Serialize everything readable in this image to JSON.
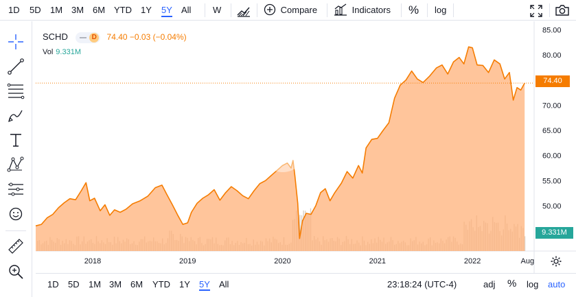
{
  "top_toolbar": {
    "ranges": [
      {
        "label": "1D",
        "active": false
      },
      {
        "label": "5D",
        "active": false
      },
      {
        "label": "1M",
        "active": false
      },
      {
        "label": "3M",
        "active": false
      },
      {
        "label": "6M",
        "active": false
      },
      {
        "label": "YTD",
        "active": false
      },
      {
        "label": "1Y",
        "active": false
      },
      {
        "label": "5Y",
        "active": true
      },
      {
        "label": "All",
        "active": false
      }
    ],
    "interval_label": "W",
    "compare_label": "Compare",
    "indicators_label": "Indicators",
    "percent_label": "%",
    "log_label": "log"
  },
  "legend": {
    "symbol": "SCHD",
    "badge": "D",
    "ohlc": "74.40 −0.03 (−0.04%)",
    "vol_label": "Vol",
    "vol_value": "9.331M"
  },
  "price_tag": "74.40",
  "vol_tag": "9.331M",
  "bottom_bar": {
    "ranges": [
      {
        "label": "1D",
        "active": false
      },
      {
        "label": "5D",
        "active": false
      },
      {
        "label": "1M",
        "active": false
      },
      {
        "label": "3M",
        "active": false
      },
      {
        "label": "6M",
        "active": false
      },
      {
        "label": "YTD",
        "active": false
      },
      {
        "label": "1Y",
        "active": false
      },
      {
        "label": "5Y",
        "active": true
      },
      {
        "label": "All",
        "active": false
      }
    ],
    "clock": "23:18:24 (UTC-4)",
    "adj_label": "adj",
    "percent_label": "%",
    "log_label": "log",
    "auto_label": "auto"
  },
  "colors": {
    "line": "#f57c00",
    "area": "#ffb27a",
    "volume": "#d9d0c6",
    "accent": "#2962ff"
  },
  "chart_data": {
    "type": "area",
    "symbol": "SCHD",
    "y_ticks": [
      "85.00",
      "80.00",
      "75.00",
      "70.00",
      "65.00",
      "60.00",
      "55.00",
      "50.00",
      "45.00"
    ],
    "ylim": [
      41,
      86
    ],
    "x_ticks": [
      {
        "label": "2018",
        "x": 2018.0
      },
      {
        "label": "2019",
        "x": 2019.0
      },
      {
        "label": "2020",
        "x": 2020.0
      },
      {
        "label": "2021",
        "x": 2021.0
      },
      {
        "label": "2022",
        "x": 2022.0
      },
      {
        "label": "Aug",
        "x": 2022.58
      }
    ],
    "xlim": [
      2017.4,
      2022.65
    ],
    "last_price": 74.4,
    "series": [
      {
        "name": "SCHD",
        "points": [
          [
            2017.4,
            46.0
          ],
          [
            2017.46,
            46.3
          ],
          [
            2017.52,
            47.6
          ],
          [
            2017.58,
            48.3
          ],
          [
            2017.64,
            49.6
          ],
          [
            2017.7,
            50.6
          ],
          [
            2017.76,
            51.4
          ],
          [
            2017.82,
            51.2
          ],
          [
            2017.88,
            53.0
          ],
          [
            2017.93,
            54.6
          ],
          [
            2017.97,
            51.0
          ],
          [
            2018.02,
            51.5
          ],
          [
            2018.08,
            49.0
          ],
          [
            2018.13,
            50.2
          ],
          [
            2018.18,
            48.1
          ],
          [
            2018.23,
            49.2
          ],
          [
            2018.29,
            48.7
          ],
          [
            2018.35,
            49.3
          ],
          [
            2018.42,
            50.4
          ],
          [
            2018.5,
            51.0
          ],
          [
            2018.58,
            51.9
          ],
          [
            2018.66,
            53.6
          ],
          [
            2018.73,
            54.1
          ],
          [
            2018.78,
            52.3
          ],
          [
            2018.84,
            50.2
          ],
          [
            2018.9,
            48.0
          ],
          [
            2018.95,
            46.3
          ],
          [
            2019.0,
            46.6
          ],
          [
            2019.04,
            48.7
          ],
          [
            2019.1,
            50.5
          ],
          [
            2019.16,
            51.5
          ],
          [
            2019.22,
            52.2
          ],
          [
            2019.28,
            53.2
          ],
          [
            2019.34,
            51.1
          ],
          [
            2019.4,
            52.6
          ],
          [
            2019.46,
            53.8
          ],
          [
            2019.52,
            53.0
          ],
          [
            2019.58,
            52.0
          ],
          [
            2019.64,
            51.4
          ],
          [
            2019.7,
            53.0
          ],
          [
            2019.76,
            54.4
          ],
          [
            2019.82,
            55.0
          ],
          [
            2019.88,
            56.0
          ],
          [
            2019.94,
            57.0
          ],
          [
            2020.0,
            58.0
          ],
          [
            2020.05,
            58.5
          ],
          [
            2020.09,
            57.5
          ],
          [
            2020.11,
            59.0
          ],
          [
            2020.13,
            56.0
          ],
          [
            2020.16,
            50.5
          ],
          [
            2020.18,
            43.5
          ],
          [
            2020.21,
            47.0
          ],
          [
            2020.25,
            48.5
          ],
          [
            2020.3,
            48.3
          ],
          [
            2020.35,
            50.0
          ],
          [
            2020.4,
            52.6
          ],
          [
            2020.45,
            53.4
          ],
          [
            2020.5,
            51.0
          ],
          [
            2020.55,
            52.6
          ],
          [
            2020.62,
            54.5
          ],
          [
            2020.68,
            56.8
          ],
          [
            2020.74,
            55.5
          ],
          [
            2020.8,
            58.0
          ],
          [
            2020.84,
            56.5
          ],
          [
            2020.88,
            61.5
          ],
          [
            2020.94,
            63.2
          ],
          [
            2021.0,
            63.4
          ],
          [
            2021.06,
            65.0
          ],
          [
            2021.12,
            66.5
          ],
          [
            2021.18,
            71.4
          ],
          [
            2021.24,
            74.0
          ],
          [
            2021.3,
            75.0
          ],
          [
            2021.36,
            76.8
          ],
          [
            2021.42,
            75.2
          ],
          [
            2021.48,
            74.5
          ],
          [
            2021.55,
            75.8
          ],
          [
            2021.62,
            77.4
          ],
          [
            2021.68,
            78.0
          ],
          [
            2021.74,
            76.2
          ],
          [
            2021.8,
            78.6
          ],
          [
            2021.86,
            79.5
          ],
          [
            2021.91,
            78.2
          ],
          [
            2021.96,
            81.6
          ],
          [
            2022.0,
            81.4
          ],
          [
            2022.05,
            78.0
          ],
          [
            2022.11,
            77.9
          ],
          [
            2022.17,
            76.5
          ],
          [
            2022.23,
            79.0
          ],
          [
            2022.29,
            78.2
          ],
          [
            2022.34,
            75.2
          ],
          [
            2022.39,
            76.5
          ],
          [
            2022.43,
            71.0
          ],
          [
            2022.47,
            73.5
          ],
          [
            2022.51,
            73.0
          ],
          [
            2022.55,
            74.4
          ]
        ]
      }
    ],
    "volume_series": {
      "name": "Vol",
      "last_value": "9.331M"
    }
  }
}
